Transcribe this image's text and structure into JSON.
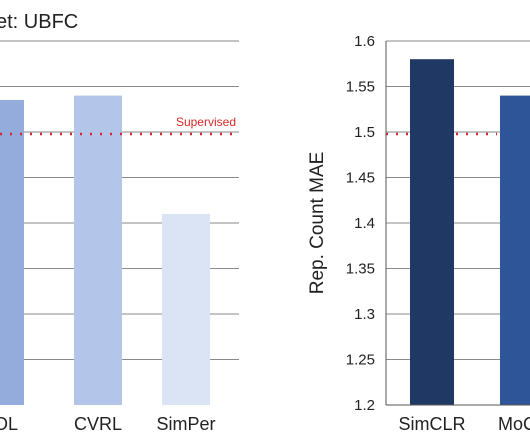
{
  "colors": {
    "grid": "#8a8a8a",
    "axis": "#555555",
    "baseline": "#d62728"
  },
  "chart_data": [
    {
      "type": "bar",
      "title_prefix": "et: ",
      "title": "UBFC",
      "categories": [
        "YOL",
        "CVRL",
        "SimPer"
      ],
      "values": [
        null,
        1.54,
        1.41
      ],
      "colors": [
        "#93acdc",
        "#b3c5e9",
        "#dbe4f5"
      ],
      "ylim": [
        1.2,
        1.6
      ],
      "ytick_values": [
        1.2,
        1.25,
        1.3,
        1.35,
        1.4,
        1.45,
        1.5,
        1.55,
        1.6
      ],
      "grid": true,
      "baseline": {
        "label": "Supervised",
        "value": 1.5
      },
      "note": "Left panel is cropped; first bar extends above the visible top."
    },
    {
      "type": "bar",
      "title": "",
      "ylabel": "Rep. Count MAE",
      "categories": [
        "SimCLR",
        "MoCo"
      ],
      "values": [
        1.58,
        1.54
      ],
      "colors": [
        "#1f3864",
        "#2e5597"
      ],
      "ylim": [
        1.2,
        1.6
      ],
      "yticks": [
        "1.2",
        "1.25",
        "1.3",
        "1.35",
        "1.4",
        "1.45",
        "1.5",
        "1.55",
        "1.6"
      ],
      "ytick_values": [
        1.2,
        1.25,
        1.3,
        1.35,
        1.4,
        1.45,
        1.5,
        1.55,
        1.6
      ],
      "grid": true,
      "baseline": {
        "label": "",
        "value": 1.5
      }
    }
  ]
}
